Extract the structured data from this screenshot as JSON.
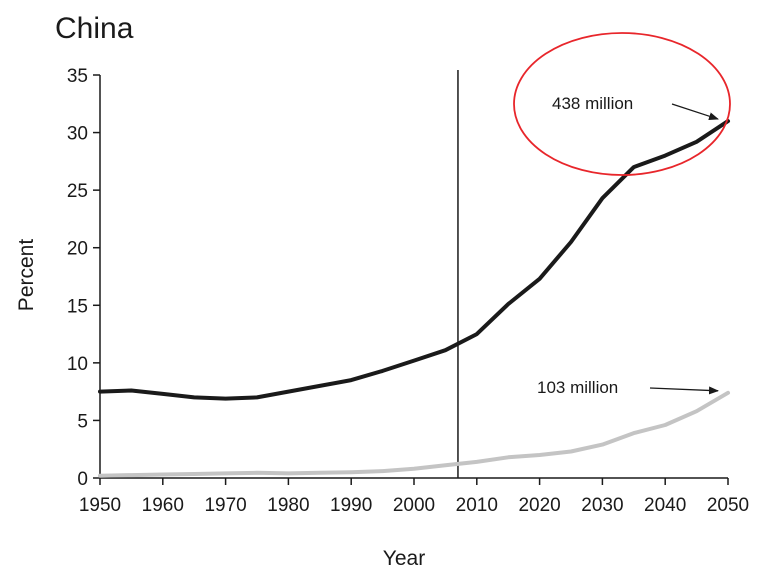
{
  "chart_data": {
    "type": "line",
    "title": "China",
    "xlabel": "Year",
    "ylabel": "Percent",
    "xlim": [
      1950,
      2050
    ],
    "ylim": [
      0,
      35
    ],
    "x_ticks": [
      1950,
      1960,
      1970,
      1980,
      1990,
      2000,
      2010,
      2020,
      2030,
      2040,
      2050
    ],
    "y_ticks": [
      0,
      5,
      10,
      15,
      20,
      25,
      30,
      35
    ],
    "grid": false,
    "legend": "none",
    "reference_line_x": 2007,
    "series": [
      {
        "color": "#1a1a1a",
        "x": [
          1950,
          1955,
          1960,
          1965,
          1970,
          1975,
          1980,
          1985,
          1990,
          1995,
          2000,
          2005,
          2010,
          2015,
          2020,
          2025,
          2030,
          2035,
          2040,
          2045,
          2050
        ],
        "y": [
          7.5,
          7.6,
          7.3,
          7.0,
          6.9,
          7.0,
          7.5,
          8.0,
          8.5,
          9.3,
          10.2,
          11.1,
          12.5,
          15.1,
          17.3,
          20.5,
          24.3,
          27.0,
          28.0,
          29.2,
          31.0
        ]
      },
      {
        "color": "#c4c4c4",
        "x": [
          1950,
          1955,
          1960,
          1965,
          1970,
          1975,
          1980,
          1985,
          1990,
          1995,
          2000,
          2005,
          2010,
          2015,
          2020,
          2025,
          2030,
          2035,
          2040,
          2045,
          2050
        ],
        "y": [
          0.2,
          0.25,
          0.3,
          0.35,
          0.4,
          0.45,
          0.4,
          0.45,
          0.5,
          0.6,
          0.8,
          1.1,
          1.4,
          1.8,
          2.0,
          2.3,
          2.9,
          3.9,
          4.6,
          5.8,
          7.4
        ]
      }
    ],
    "annotations": [
      {
        "text": "438 million",
        "x": 2050,
        "y": 31.0,
        "circled": true
      },
      {
        "text": "103 million",
        "x": 2050,
        "y": 7.4,
        "circled": false
      }
    ]
  }
}
